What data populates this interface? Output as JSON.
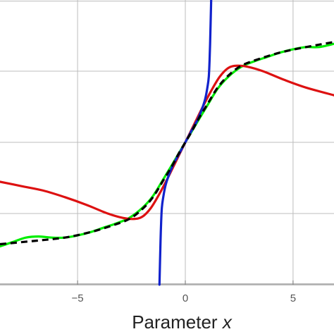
{
  "chart_data": {
    "type": "line",
    "title": "",
    "xlabel": "Parameter",
    "xlabel_variable": "x",
    "ylabel": "",
    "xlim": [
      -8.6,
      6.9
    ],
    "ylim": [
      -1.3,
      1.3
    ],
    "grid": true,
    "x_ticks": [
      {
        "value": -5,
        "label": "−5"
      },
      {
        "value": 0,
        "label": "0"
      },
      {
        "value": 5,
        "label": "5"
      }
    ],
    "y_gridlines": [
      -1.29,
      -0.65,
      0,
      0.65,
      1.29
    ],
    "series": [
      {
        "color": "#00ee00",
        "style": "solid",
        "x": [
          -8.6,
          -8.0,
          -7.4,
          -6.8,
          -6.2,
          -5.6,
          -5.0,
          -4.4,
          -3.8,
          -3.2,
          -2.6,
          -2.0,
          -1.5,
          -1.0,
          -0.6,
          -0.3,
          0.0,
          0.3,
          0.6,
          1.0,
          1.5,
          2.0,
          2.6,
          3.2,
          3.8,
          4.4,
          5.0,
          5.6,
          6.2,
          6.9
        ],
        "y": [
          -0.95,
          -0.91,
          -0.87,
          -0.86,
          -0.87,
          -0.87,
          -0.85,
          -0.82,
          -0.78,
          -0.74,
          -0.69,
          -0.6,
          -0.49,
          -0.33,
          -0.2,
          -0.1,
          0.0,
          0.1,
          0.2,
          0.33,
          0.49,
          0.6,
          0.69,
          0.74,
          0.78,
          0.82,
          0.85,
          0.87,
          0.87,
          0.9
        ]
      },
      {
        "color": "#dd1111",
        "style": "solid",
        "x": [
          -8.6,
          -7.6,
          -6.6,
          -5.6,
          -4.6,
          -3.6,
          -2.9,
          -2.4,
          -2.0,
          -1.6,
          -1.2,
          -0.8,
          -0.4,
          0.0,
          0.4,
          0.8,
          1.2,
          1.6,
          2.0,
          2.4,
          2.9,
          3.6,
          4.6,
          5.6,
          6.9
        ],
        "y": [
          -0.36,
          -0.4,
          -0.44,
          -0.5,
          -0.57,
          -0.65,
          -0.69,
          -0.7,
          -0.68,
          -0.6,
          -0.47,
          -0.32,
          -0.16,
          0.0,
          0.16,
          0.32,
          0.47,
          0.6,
          0.68,
          0.7,
          0.69,
          0.65,
          0.57,
          0.5,
          0.43
        ]
      },
      {
        "color": "#1122cc",
        "style": "solid",
        "x": [
          -1.2,
          -1.15,
          -1.12,
          -1.09,
          -1.04,
          -0.9,
          -0.6,
          -0.3,
          0.0,
          0.3,
          0.6,
          0.9,
          1.04,
          1.09,
          1.12,
          1.15,
          1.2
        ],
        "y": [
          -1.3,
          -0.9,
          -0.72,
          -0.6,
          -0.52,
          -0.38,
          -0.22,
          -0.11,
          0.0,
          0.11,
          0.22,
          0.38,
          0.52,
          0.6,
          0.72,
          0.9,
          1.3
        ]
      },
      {
        "color": "#000000",
        "style": "dashed",
        "x": [
          -8.6,
          -7.0,
          -5.6,
          -4.4,
          -3.4,
          -2.6,
          -2.0,
          -1.5,
          -1.0,
          -0.6,
          -0.3,
          0.0,
          0.3,
          0.6,
          1.0,
          1.5,
          2.0,
          2.6,
          3.4,
          4.4,
          5.6,
          7.0
        ],
        "y": [
          -0.93,
          -0.9,
          -0.87,
          -0.82,
          -0.76,
          -0.7,
          -0.61,
          -0.5,
          -0.34,
          -0.21,
          -0.1,
          0.0,
          0.1,
          0.21,
          0.34,
          0.5,
          0.61,
          0.7,
          0.76,
          0.82,
          0.87,
          0.92
        ]
      }
    ]
  }
}
